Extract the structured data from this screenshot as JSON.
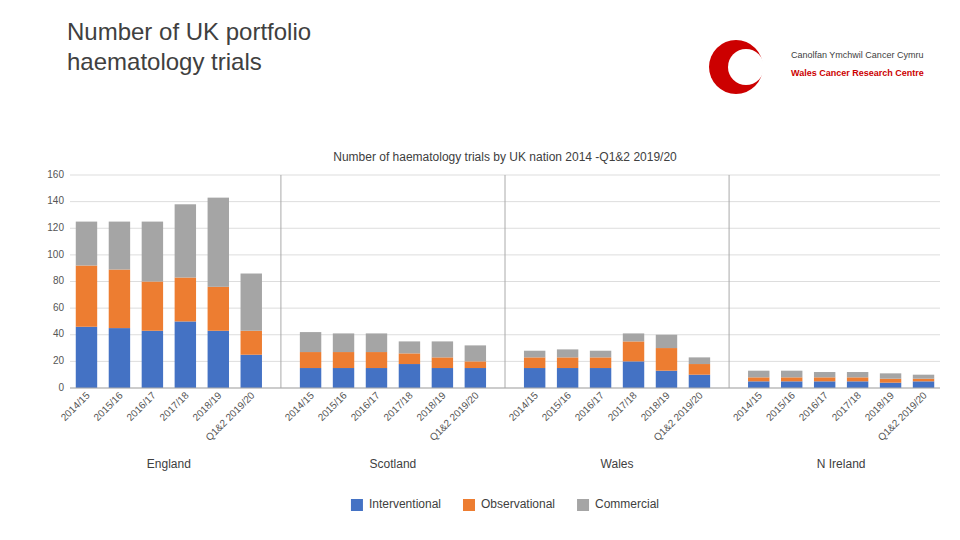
{
  "chart_data": {
    "type": "bar",
    "stacked": true,
    "title": "Number of UK portfolio\nhaematology trials",
    "subtitle": "Number of haematology trials by UK nation 2014 -Q1&2 2019/20",
    "annotations": [
      "Canolfan Ymchwil Cancer Cymru",
      "Wales Cancer Research Centre"
    ],
    "groups": [
      "England",
      "Scotland",
      "Wales",
      "N Ireland"
    ],
    "categories": [
      "2014/15",
      "2015/16",
      "2016/17",
      "2017/18",
      "2018/19",
      "Q1&2 2019/20",
      "2014/15",
      "2015/16",
      "2016/17",
      "2017/18",
      "2018/19",
      "Q1&2 2019/20",
      "2014/15",
      "2015/16",
      "2016/17",
      "2017/18",
      "2018/19",
      "Q1&2 2019/20",
      "2014/15",
      "2015/16",
      "2016/17",
      "2017/18",
      "2018/19",
      "Q1&2 2019/20"
    ],
    "series": [
      {
        "name": "Interventional",
        "color": "#4472C4",
        "values": [
          46,
          45,
          43,
          50,
          43,
          25,
          15,
          15,
          15,
          18,
          15,
          15,
          15,
          15,
          15,
          20,
          13,
          10,
          5,
          5,
          5,
          5,
          4,
          5
        ]
      },
      {
        "name": "Observational",
        "color": "#ED7D31",
        "values": [
          46,
          44,
          37,
          33,
          33,
          18,
          12,
          12,
          12,
          8,
          8,
          5,
          8,
          8,
          8,
          15,
          17,
          8,
          3,
          3,
          3,
          3,
          3,
          2
        ]
      },
      {
        "name": "Commercial",
        "color": "#A5A5A5",
        "values": [
          33,
          36,
          45,
          55,
          67,
          43,
          15,
          14,
          14,
          9,
          12,
          12,
          5,
          6,
          5,
          6,
          10,
          5,
          5,
          5,
          4,
          4,
          4,
          3
        ]
      }
    ],
    "ylim": [
      0,
      160
    ],
    "yticks": [
      0,
      20,
      40,
      60,
      80,
      100,
      120,
      140,
      160
    ],
    "grid": true,
    "legend": "bottom"
  }
}
